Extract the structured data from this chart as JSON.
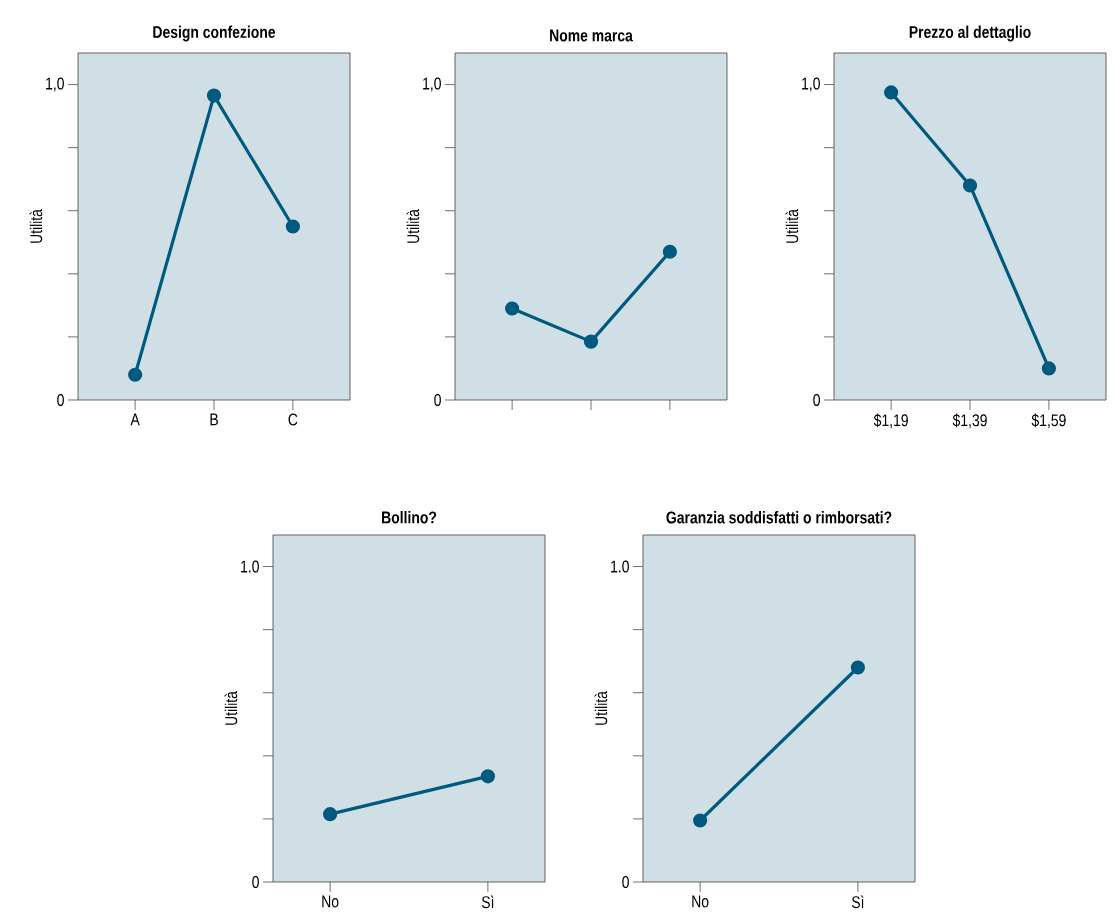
{
  "chart_data": [
    {
      "type": "line",
      "title": "Design confezione",
      "ylabel": "Utilità",
      "categories": [
        "A",
        "B",
        "C"
      ],
      "values": [
        0.08,
        0.965,
        0.55
      ],
      "color": "#005a80",
      "marker": "circle",
      "ylim": [
        0,
        1.1
      ],
      "yticks": [
        0,
        {
          "value": 0.2,
          "label": null
        },
        {
          "value": 0.4,
          "label": null
        },
        {
          "value": 0.6,
          "label": null
        },
        {
          "value": 0.8,
          "label": null
        },
        {
          "value": 1.0,
          "label": "1,0"
        }
      ]
    },
    {
      "type": "line",
      "title": "Nome marca",
      "ylabel": "Utilità",
      "categories": [
        null,
        null,
        null
      ],
      "values": [
        0.29,
        0.185,
        0.47
      ],
      "color": "#005a80",
      "marker": "circle",
      "ylim": [
        0,
        1.1
      ],
      "yticks": [
        0,
        {
          "value": 0.2,
          "label": null
        },
        {
          "value": 0.4,
          "label": null
        },
        {
          "value": 0.6,
          "label": null
        },
        {
          "value": 0.8,
          "label": null
        },
        {
          "value": 1.0,
          "label": "1,0"
        }
      ]
    },
    {
      "type": "line",
      "title": "Prezzo al dettaglio",
      "ylabel": "Utilità",
      "categories": [
        "$1,19",
        "$1,39",
        "$1,59"
      ],
      "values": [
        0.975,
        0.68,
        0.1
      ],
      "color": "#005a80",
      "marker": "circle",
      "ylim": [
        0,
        1.1
      ],
      "yticks": [
        0,
        {
          "value": 0.2,
          "label": null
        },
        {
          "value": 0.4,
          "label": null
        },
        {
          "value": 0.6,
          "label": null
        },
        {
          "value": 0.8,
          "label": null
        },
        {
          "value": 1.0,
          "label": "1,0"
        }
      ]
    },
    {
      "type": "line",
      "title": "Bollino?",
      "ylabel": "Utilità",
      "categories": [
        "No",
        "Sì"
      ],
      "values": [
        0.215,
        0.335
      ],
      "color": "#005a80",
      "marker": "circle",
      "ylim": [
        0,
        1.1
      ],
      "yticks": [
        0,
        {
          "value": 0.2,
          "label": null
        },
        {
          "value": 0.4,
          "label": null
        },
        {
          "value": 0.6,
          "label": null
        },
        {
          "value": 0.8,
          "label": null
        },
        {
          "value": 1.0,
          "label": "1.0"
        }
      ]
    },
    {
      "type": "line",
      "title": "Garanzia soddisfatti o rimborsati?",
      "ylabel": "Utilità",
      "categories": [
        "No",
        "Sì"
      ],
      "values": [
        0.195,
        0.68
      ],
      "color": "#005a80",
      "marker": "circle",
      "ylim": [
        0,
        1.1
      ],
      "yticks": [
        0,
        {
          "value": 0.2,
          "label": null
        },
        {
          "value": 0.4,
          "label": null
        },
        {
          "value": 0.6,
          "label": null
        },
        {
          "value": 0.8,
          "label": null
        },
        {
          "value": 1.0,
          "label": "1.0"
        }
      ]
    }
  ]
}
